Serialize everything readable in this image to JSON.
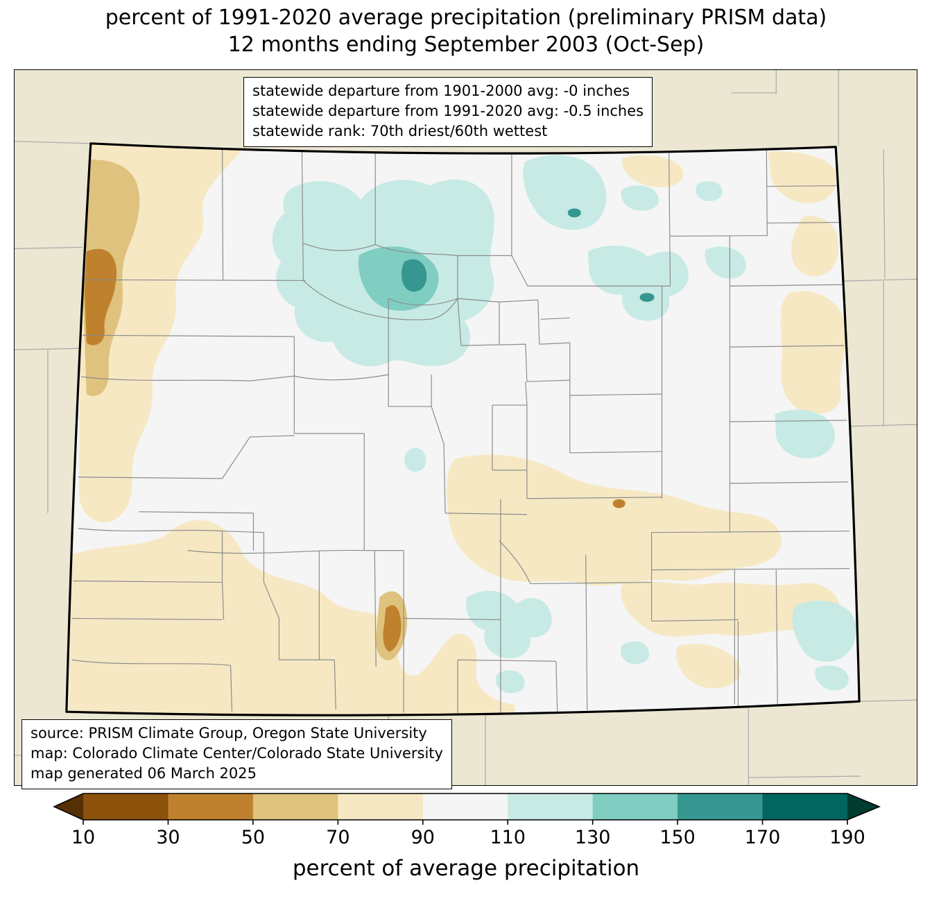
{
  "title": {
    "line1": "percent of 1991-2020 average precipitation (preliminary PRISM data)",
    "line2": "12 months ending September 2003 (Oct-Sep)"
  },
  "stats_box": {
    "lines": [
      "statewide departure from 1901-2000 avg: -0 inches",
      "statewide departure from 1991-2020 avg: -0.5 inches",
      "statewide rank: 70th driest/60th wettest"
    ]
  },
  "source_box": {
    "lines": [
      "source: PRISM Climate Group, Oregon State University",
      "map: Colorado Climate Center/Colorado State University",
      "map generated 06 March 2025"
    ]
  },
  "colorbar": {
    "label": "percent of average precipitation",
    "tick_labels": [
      "10",
      "30",
      "50",
      "70",
      "90",
      "110",
      "130",
      "150",
      "170",
      "190"
    ],
    "segment_colors": [
      "#543005",
      "#8c510a",
      "#bf812d",
      "#dfc27d",
      "#f6e8c3",
      "#f5f5f5",
      "#c7eae5",
      "#80cdc1",
      "#35978f",
      "#01665e",
      "#003c30"
    ]
  },
  "map": {
    "palette": {
      "p10_30": "#8c510a",
      "p30_50": "#bf812d",
      "p50_70": "#dfc27d",
      "p70_90": "#f6e8c3",
      "p90_110": "#f5f5f5",
      "p110_130": "#c7eae5",
      "p130_150": "#80cdc1",
      "p150_170": "#35978f",
      "p170_190": "#01665e",
      "outside": "#ebe7d2",
      "county_line": "#8c8c8c",
      "state_border": "#000000"
    }
  }
}
